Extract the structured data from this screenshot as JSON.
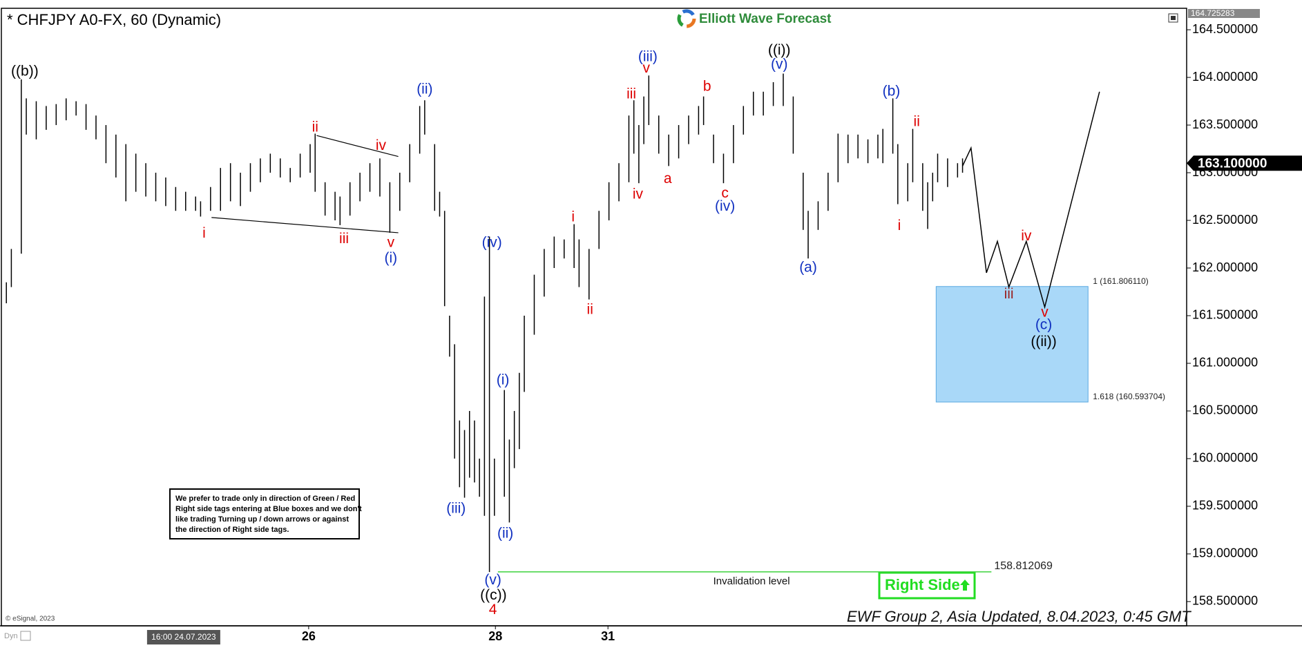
{
  "chart_data": {
    "type": "ohlc",
    "title": "* CHFJPY A0-FX, 60 (Dynamic)",
    "brand": "Elliott Wave Forecast",
    "footer": "EWF Group 2, Asia Updated, 8.04.2023, 0:45 GMT",
    "copyright": "© eSignal, 2023",
    "corner_tag": "Dyn",
    "xlim": [
      0,
      238
    ],
    "ylim": [
      158.26,
      164.725283
    ],
    "yticks": [
      {
        "value": 164.5,
        "label": "164.500000"
      },
      {
        "value": 164,
        "label": "164.000000"
      },
      {
        "value": 163.5,
        "label": "163.500000"
      },
      {
        "value": 163,
        "label": "163.000000"
      },
      {
        "value": 162.5,
        "label": "162.500000"
      },
      {
        "value": 162,
        "label": "162.000000"
      },
      {
        "value": 161.5,
        "label": "161.500000"
      },
      {
        "value": 161,
        "label": "161.000000"
      },
      {
        "value": 160.5,
        "label": "160.500000"
      },
      {
        "value": 160,
        "label": "160.000000"
      },
      {
        "value": 159.5,
        "label": "159.500000"
      },
      {
        "value": 159,
        "label": "159.000000"
      },
      {
        "value": 158.5,
        "label": "158.500000"
      }
    ],
    "xticks": [
      {
        "value": 61.7,
        "label": "26"
      },
      {
        "value": 99.2,
        "label": "28"
      },
      {
        "value": 121.8,
        "label": "31"
      }
    ],
    "cursor_time": {
      "value": 36.6,
      "label": "16:00 24.07.2023"
    },
    "top_price": {
      "value": 164.725283,
      "label": "164.725283"
    },
    "last_price": {
      "value": 163.1,
      "label": "163.100000"
    },
    "grid": false,
    "bar_color": "#000000",
    "bars": [
      {
        "x": 1,
        "high": 161.85,
        "low": 161.63
      },
      {
        "x": 2,
        "high": 162.2,
        "low": 161.8
      },
      {
        "x": 4,
        "high": 163.98,
        "low": 162.15
      },
      {
        "x": 5,
        "high": 163.78,
        "low": 163.4
      },
      {
        "x": 7,
        "high": 163.75,
        "low": 163.35
      },
      {
        "x": 9,
        "high": 163.7,
        "low": 163.45
      },
      {
        "x": 11,
        "high": 163.72,
        "low": 163.5
      },
      {
        "x": 13,
        "high": 163.78,
        "low": 163.55
      },
      {
        "x": 15,
        "high": 163.75,
        "low": 163.6
      },
      {
        "x": 17,
        "high": 163.72,
        "low": 163.45
      },
      {
        "x": 19,
        "high": 163.6,
        "low": 163.35
      },
      {
        "x": 21,
        "high": 163.5,
        "low": 163.1
      },
      {
        "x": 23,
        "high": 163.4,
        "low": 162.95
      },
      {
        "x": 25,
        "high": 163.3,
        "low": 162.7
      },
      {
        "x": 27,
        "high": 163.2,
        "low": 162.8
      },
      {
        "x": 29,
        "high": 163.1,
        "low": 162.75
      },
      {
        "x": 31,
        "high": 163.0,
        "low": 162.7
      },
      {
        "x": 33,
        "high": 162.95,
        "low": 162.65
      },
      {
        "x": 35,
        "high": 162.85,
        "low": 162.6
      },
      {
        "x": 37,
        "high": 162.8,
        "low": 162.6
      },
      {
        "x": 39,
        "high": 162.75,
        "low": 162.6
      },
      {
        "x": 40,
        "high": 162.7,
        "low": 162.54
      },
      {
        "x": 42,
        "high": 162.85,
        "low": 162.6
      },
      {
        "x": 44,
        "high": 163.05,
        "low": 162.6
      },
      {
        "x": 46,
        "high": 163.1,
        "low": 162.7
      },
      {
        "x": 48,
        "high": 163.0,
        "low": 162.65
      },
      {
        "x": 50,
        "high": 163.1,
        "low": 162.8
      },
      {
        "x": 52,
        "high": 163.15,
        "low": 162.9
      },
      {
        "x": 54,
        "high": 163.2,
        "low": 163.0
      },
      {
        "x": 56,
        "high": 163.15,
        "low": 162.95
      },
      {
        "x": 58,
        "high": 163.05,
        "low": 162.9
      },
      {
        "x": 60,
        "high": 163.2,
        "low": 162.95
      },
      {
        "x": 62,
        "high": 163.3,
        "low": 163.0
      },
      {
        "x": 63,
        "high": 163.41,
        "low": 162.8
      },
      {
        "x": 65,
        "high": 162.9,
        "low": 162.55
      },
      {
        "x": 67,
        "high": 162.8,
        "low": 162.5
      },
      {
        "x": 68,
        "high": 162.75,
        "low": 162.45
      },
      {
        "x": 70,
        "high": 162.9,
        "low": 162.55
      },
      {
        "x": 72,
        "high": 163.0,
        "low": 162.7
      },
      {
        "x": 74,
        "high": 163.1,
        "low": 162.8
      },
      {
        "x": 76,
        "high": 163.15,
        "low": 162.75
      },
      {
        "x": 78,
        "high": 162.9,
        "low": 162.37
      },
      {
        "x": 80,
        "high": 163.0,
        "low": 162.6
      },
      {
        "x": 82,
        "high": 163.3,
        "low": 162.9
      },
      {
        "x": 84,
        "high": 163.7,
        "low": 163.2
      },
      {
        "x": 85,
        "high": 163.76,
        "low": 163.4
      },
      {
        "x": 87,
        "high": 163.3,
        "low": 162.6
      },
      {
        "x": 88,
        "high": 162.8,
        "low": 162.54
      },
      {
        "x": 89,
        "high": 162.6,
        "low": 161.6
      },
      {
        "x": 90,
        "high": 161.5,
        "low": 161.07
      },
      {
        "x": 91,
        "high": 161.2,
        "low": 160.0
      },
      {
        "x": 92,
        "high": 160.4,
        "low": 159.7
      },
      {
        "x": 93,
        "high": 160.3,
        "low": 159.59
      },
      {
        "x": 94,
        "high": 160.5,
        "low": 159.8
      },
      {
        "x": 95,
        "high": 160.4,
        "low": 159.75
      },
      {
        "x": 96,
        "high": 160.0,
        "low": 159.6
      },
      {
        "x": 97,
        "high": 161.7,
        "low": 159.4
      },
      {
        "x": 98,
        "high": 162.33,
        "low": 158.81
      },
      {
        "x": 99,
        "high": 160.0,
        "low": 159.4
      },
      {
        "x": 101,
        "high": 160.72,
        "low": 159.6
      },
      {
        "x": 102,
        "high": 160.2,
        "low": 159.33
      },
      {
        "x": 103,
        "high": 160.5,
        "low": 159.9
      },
      {
        "x": 104,
        "high": 160.9,
        "low": 160.1
      },
      {
        "x": 105,
        "high": 161.5,
        "low": 160.7
      },
      {
        "x": 107,
        "high": 161.93,
        "low": 161.3
      },
      {
        "x": 109,
        "high": 162.2,
        "low": 161.7
      },
      {
        "x": 111,
        "high": 162.33,
        "low": 162.0
      },
      {
        "x": 113,
        "high": 162.3,
        "low": 162.1
      },
      {
        "x": 115,
        "high": 162.46,
        "low": 162.0
      },
      {
        "x": 116,
        "high": 162.3,
        "low": 161.8
      },
      {
        "x": 118,
        "high": 162.2,
        "low": 161.67
      },
      {
        "x": 120,
        "high": 162.6,
        "low": 162.2
      },
      {
        "x": 122,
        "high": 162.9,
        "low": 162.5
      },
      {
        "x": 124,
        "high": 163.1,
        "low": 162.7
      },
      {
        "x": 126,
        "high": 163.6,
        "low": 162.9
      },
      {
        "x": 127,
        "high": 163.76,
        "low": 163.2
      },
      {
        "x": 128,
        "high": 163.5,
        "low": 162.89
      },
      {
        "x": 129,
        "high": 163.8,
        "low": 163.3
      },
      {
        "x": 130,
        "high": 164.02,
        "low": 163.5
      },
      {
        "x": 132,
        "high": 163.6,
        "low": 163.2
      },
      {
        "x": 134,
        "high": 163.4,
        "low": 163.07
      },
      {
        "x": 136,
        "high": 163.5,
        "low": 163.15
      },
      {
        "x": 138,
        "high": 163.6,
        "low": 163.3
      },
      {
        "x": 140,
        "high": 163.7,
        "low": 163.4
      },
      {
        "x": 141,
        "high": 163.8,
        "low": 163.5
      },
      {
        "x": 143,
        "high": 163.4,
        "low": 163.1
      },
      {
        "x": 145,
        "high": 163.2,
        "low": 162.89
      },
      {
        "x": 147,
        "high": 163.5,
        "low": 163.1
      },
      {
        "x": 149,
        "high": 163.7,
        "low": 163.4
      },
      {
        "x": 151,
        "high": 163.85,
        "low": 163.6
      },
      {
        "x": 153,
        "high": 163.85,
        "low": 163.6
      },
      {
        "x": 155,
        "high": 163.95,
        "low": 163.7
      },
      {
        "x": 157,
        "high": 164.04,
        "low": 163.7
      },
      {
        "x": 159,
        "high": 163.8,
        "low": 163.2
      },
      {
        "x": 161,
        "high": 163.0,
        "low": 162.4
      },
      {
        "x": 162,
        "high": 162.6,
        "low": 162.1
      },
      {
        "x": 164,
        "high": 162.7,
        "low": 162.4
      },
      {
        "x": 166,
        "high": 163.0,
        "low": 162.6
      },
      {
        "x": 168,
        "high": 163.41,
        "low": 162.9
      },
      {
        "x": 170,
        "high": 163.4,
        "low": 163.1
      },
      {
        "x": 172,
        "high": 163.4,
        "low": 163.15
      },
      {
        "x": 174,
        "high": 163.35,
        "low": 163.1
      },
      {
        "x": 176,
        "high": 163.4,
        "low": 163.15
      },
      {
        "x": 177,
        "high": 163.46,
        "low": 163.1
      },
      {
        "x": 179,
        "high": 163.78,
        "low": 163.2
      },
      {
        "x": 180,
        "high": 163.3,
        "low": 162.67
      },
      {
        "x": 182,
        "high": 163.1,
        "low": 162.7
      },
      {
        "x": 183,
        "high": 163.46,
        "low": 162.9
      },
      {
        "x": 185,
        "high": 163.1,
        "low": 162.6
      },
      {
        "x": 186,
        "high": 162.9,
        "low": 162.41
      },
      {
        "x": 187,
        "high": 163.0,
        "low": 162.7
      },
      {
        "x": 188,
        "high": 163.2,
        "low": 162.9
      },
      {
        "x": 190,
        "high": 163.15,
        "low": 162.85
      },
      {
        "x": 192,
        "high": 163.1,
        "low": 162.95
      },
      {
        "x": 193,
        "high": 163.15,
        "low": 163.0
      }
    ],
    "projection": {
      "color": "#000000",
      "x": [
        193,
        194.7,
        197.8,
        200,
        202.3,
        205.8,
        209.5,
        220.5
      ],
      "values": [
        163.07,
        163.26,
        161.95,
        162.28,
        161.8,
        162.28,
        161.59,
        163.85
      ]
    },
    "trendlines": [
      {
        "x": [
          42.2,
          79.7
        ],
        "values": [
          162.53,
          162.37
        ]
      },
      {
        "x": [
          63.3,
          79.7
        ],
        "values": [
          163.39,
          163.17
        ]
      }
    ],
    "target_box": {
      "x": [
        187.7,
        218.2
      ],
      "top": 161.80611,
      "bottom": 160.593704,
      "top_label": "1 (161.806110)",
      "bottom_label": "1.618 (160.593704)",
      "color": "#a9d8f8"
    },
    "invalidation": {
      "value": 158.812069,
      "label": "158.812069",
      "text": "Invalidation level",
      "x": [
        99.7,
        198.8
      ],
      "color": "#3cd23c"
    },
    "right_side": {
      "text": "Right Side",
      "color": "#22dd22"
    },
    "note": [
      "We prefer to trade only in direction of Green / Red",
      "Right side tags entering at Blue boxes and we don't",
      "like trading Turning up / down arrows or against",
      "the direction of Right side tags."
    ],
    "wave_labels": [
      {
        "text": "((b))",
        "x": 4.7,
        "y": 164.06,
        "color": "#000000"
      },
      {
        "text": "i",
        "x": 40.7,
        "y": 162.36,
        "color": "#dd0000"
      },
      {
        "text": "ii",
        "x": 63,
        "y": 163.47,
        "color": "#dd0000"
      },
      {
        "text": "iii",
        "x": 68.8,
        "y": 162.3,
        "color": "#dd0000"
      },
      {
        "text": "iv",
        "x": 76.2,
        "y": 163.28,
        "color": "#dd0000"
      },
      {
        "text": "v",
        "x": 78.2,
        "y": 162.26,
        "color": "#dd0000"
      },
      {
        "text": "(i)",
        "x": 78.2,
        "y": 162.1,
        "color": "#1030c0"
      },
      {
        "text": "(ii)",
        "x": 85,
        "y": 163.87,
        "color": "#1030c0"
      },
      {
        "text": "(iii)",
        "x": 91.3,
        "y": 159.47,
        "color": "#1030c0"
      },
      {
        "text": "(iv)",
        "x": 98.5,
        "y": 162.26,
        "color": "#1030c0"
      },
      {
        "text": "(i)",
        "x": 100.7,
        "y": 160.82,
        "color": "#1030c0"
      },
      {
        "text": "(ii)",
        "x": 101.2,
        "y": 159.21,
        "color": "#1030c0"
      },
      {
        "text": "(v)",
        "x": 98.7,
        "y": 158.72,
        "color": "#1030c0"
      },
      {
        "text": "((c))",
        "x": 98.8,
        "y": 158.56,
        "color": "#000000"
      },
      {
        "text": "4",
        "x": 98.7,
        "y": 158.41,
        "color": "#dd0000"
      },
      {
        "text": "i",
        "x": 114.8,
        "y": 162.53,
        "color": "#dd0000"
      },
      {
        "text": "ii",
        "x": 118.2,
        "y": 161.56,
        "color": "#dd0000"
      },
      {
        "text": "iii",
        "x": 126.5,
        "y": 163.82,
        "color": "#dd0000"
      },
      {
        "text": "iv",
        "x": 127.8,
        "y": 162.77,
        "color": "#dd0000"
      },
      {
        "text": "v",
        "x": 129.5,
        "y": 164.09,
        "color": "#dd0000"
      },
      {
        "text": "(iii)",
        "x": 129.8,
        "y": 164.21,
        "color": "#1030c0"
      },
      {
        "text": "a",
        "x": 133.8,
        "y": 162.93,
        "color": "#dd0000"
      },
      {
        "text": "b",
        "x": 141.7,
        "y": 163.9,
        "color": "#dd0000"
      },
      {
        "text": "c",
        "x": 145.3,
        "y": 162.78,
        "color": "#dd0000"
      },
      {
        "text": "(iv)",
        "x": 145.3,
        "y": 162.64,
        "color": "#1030c0"
      },
      {
        "text": "(v)",
        "x": 156.2,
        "y": 164.13,
        "color": "#1030c0"
      },
      {
        "text": "((i))",
        "x": 156.2,
        "y": 164.28,
        "color": "#000000"
      },
      {
        "text": "(a)",
        "x": 162,
        "y": 162.0,
        "color": "#1030c0"
      },
      {
        "text": "(b)",
        "x": 178.7,
        "y": 163.85,
        "color": "#1030c0"
      },
      {
        "text": "ii",
        "x": 183.8,
        "y": 163.53,
        "color": "#dd0000"
      },
      {
        "text": "i",
        "x": 180.3,
        "y": 162.44,
        "color": "#dd0000"
      },
      {
        "text": "iii",
        "x": 202.3,
        "y": 161.72,
        "color": "#992222"
      },
      {
        "text": "iv",
        "x": 205.8,
        "y": 162.33,
        "color": "#dd0000"
      },
      {
        "text": "v",
        "x": 209.5,
        "y": 161.53,
        "color": "#dd0000"
      },
      {
        "text": "(c)",
        "x": 209.3,
        "y": 161.4,
        "color": "#1030c0"
      },
      {
        "text": "((ii))",
        "x": 209.3,
        "y": 161.22,
        "color": "#000000"
      }
    ]
  }
}
